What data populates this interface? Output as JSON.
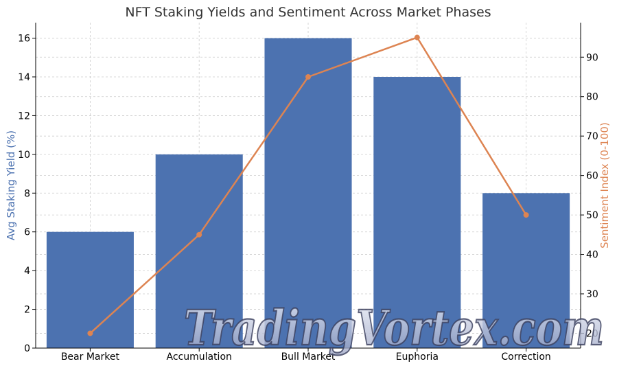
{
  "chart_data": {
    "type": "bar",
    "title": "NFT Staking Yields and Sentiment Across Market Phases",
    "categories": [
      "Bear Market",
      "Accumulation",
      "Bull Market",
      "Euphoria",
      "Correction"
    ],
    "series": [
      {
        "name": "Avg Staking Yield (%)",
        "type": "bar",
        "axis": "left",
        "color": "#4c72b0",
        "values": [
          6,
          10,
          16,
          14,
          8
        ]
      },
      {
        "name": "Sentiment Index (0-100)",
        "type": "line",
        "axis": "right",
        "color": "#dd8452",
        "values": [
          20,
          45,
          85,
          95,
          50
        ]
      }
    ],
    "ylabel": "Avg Staking Yield (%)",
    "ylabel_right": "Sentiment Index (0-100)",
    "ylim": [
      0,
      16.8
    ],
    "ylim_right": [
      16.25,
      98.75
    ],
    "yticks": [
      0,
      2,
      4,
      6,
      8,
      10,
      12,
      14,
      16
    ],
    "yticks_right": [
      20,
      30,
      40,
      50,
      60,
      70,
      80,
      90
    ],
    "grid": true,
    "legend": "none"
  },
  "watermark": {
    "text": "TradingVortex.com"
  }
}
